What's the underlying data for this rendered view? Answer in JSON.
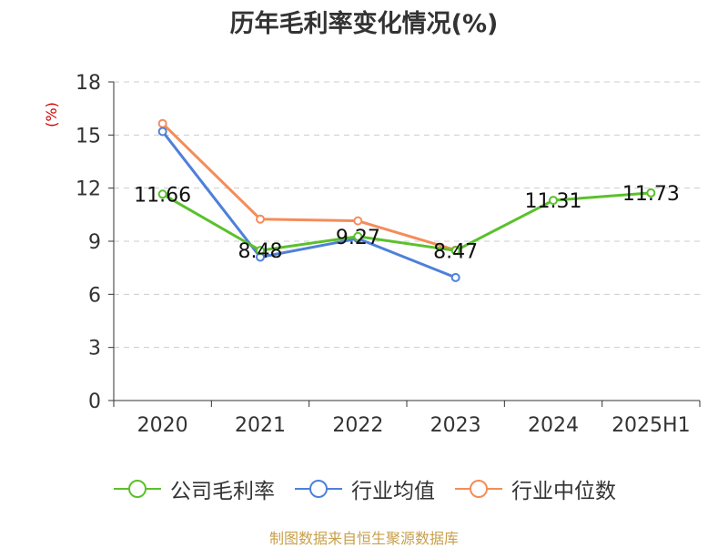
{
  "chart_data": {
    "type": "line",
    "title": "历年毛利率变化情况(%)",
    "ylabel": "(%)",
    "xlabel": "",
    "categories": [
      "2020",
      "2021",
      "2022",
      "2023",
      "2024",
      "2025H1"
    ],
    "ylim": [
      0,
      18
    ],
    "yticks": [
      0,
      3,
      6,
      9,
      12,
      15,
      18
    ],
    "grid": true,
    "legend_position": "bottom",
    "series": [
      {
        "name": "公司毛利率",
        "color": "#5ac12b",
        "values": [
          11.66,
          8.48,
          9.27,
          8.47,
          11.31,
          11.73
        ],
        "labels": [
          "11.66",
          "8.48",
          "9.27",
          "8.47",
          "11.31",
          "11.73"
        ]
      },
      {
        "name": "行业均值",
        "color": "#4f80d9",
        "values": [
          15.2,
          8.1,
          9.15,
          6.95,
          null,
          null
        ]
      },
      {
        "name": "行业中位数",
        "color": "#f48c5a",
        "values": [
          15.65,
          10.25,
          10.15,
          8.5,
          null,
          null
        ]
      }
    ],
    "source": "制图数据来自恒生聚源数据库"
  }
}
